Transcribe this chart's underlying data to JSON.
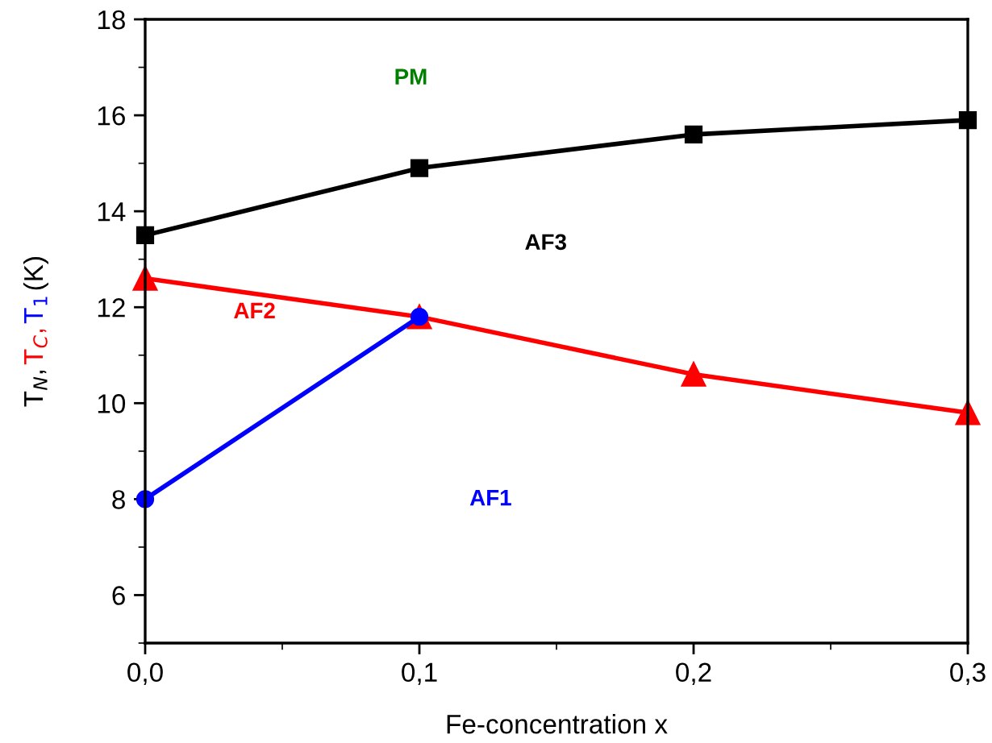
{
  "chart_data": {
    "type": "line",
    "xlabel": "Fe-concentration x",
    "ylabel": "T$_{N}$, T$_{C}$, T$_{1}$ (K)",
    "x": [
      0.0,
      0.1,
      0.2,
      0.3
    ],
    "series": [
      {
        "color": "#000000",
        "marker": "square",
        "values": [
          13.5,
          14.9,
          15.6,
          15.9
        ]
      },
      {
        "color": "#ff0000",
        "marker": "triangle",
        "values": [
          12.6,
          11.8,
          10.6,
          9.8
        ]
      },
      {
        "color": "#0000ff",
        "marker": "circle",
        "x": [
          0.0,
          0.1
        ],
        "values": [
          8.0,
          11.8
        ]
      }
    ],
    "xlim": [
      0,
      0.3
    ],
    "xticks": [
      {
        "value": 0,
        "label": "0,0"
      },
      {
        "value": 0.1,
        "label": "0,1"
      },
      {
        "value": 0.2,
        "label": "0,2"
      },
      {
        "value": 0.3,
        "label": "0,3"
      }
    ],
    "ylim": [
      5,
      18
    ],
    "yticks": [
      6,
      8,
      10,
      12,
      14,
      16,
      18
    ],
    "grid": false,
    "legend": false,
    "line_style": "solid",
    "annotations": [
      "PM",
      "AF3",
      "AF2",
      "AF1"
    ]
  }
}
